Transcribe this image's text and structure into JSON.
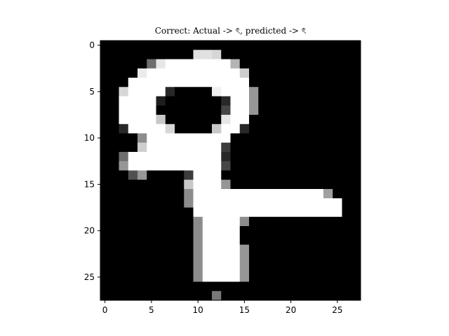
{
  "chart_data": {
    "type": "heatmap",
    "title": "Correct: Actual -> ৎ, predicted -> ৎ",
    "xlabel": "",
    "ylabel": "",
    "colormap": "gray",
    "value_range": [
      0,
      255
    ],
    "xlim": [
      -0.5,
      27.5
    ],
    "ylim": [
      27.5,
      -0.5
    ],
    "x_ticks": [
      0,
      5,
      10,
      15,
      20,
      25
    ],
    "y_ticks": [
      0,
      5,
      10,
      15,
      20,
      25
    ],
    "x_tick_labels": [
      "0",
      "5",
      "10",
      "15",
      "20",
      "25"
    ],
    "y_tick_labels": [
      "0",
      "5",
      "10",
      "15",
      "20",
      "25"
    ],
    "rows": 28,
    "cols": 28,
    "pixels": [
      [
        0,
        0,
        0,
        0,
        0,
        0,
        0,
        0,
        0,
        0,
        0,
        0,
        0,
        0,
        0,
        0,
        0,
        0,
        0,
        0,
        0,
        0,
        0,
        0,
        0,
        0,
        0,
        0
      ],
      [
        0,
        0,
        0,
        0,
        0,
        0,
        0,
        0,
        0,
        0,
        225,
        225,
        215,
        0,
        0,
        0,
        0,
        0,
        0,
        0,
        0,
        0,
        0,
        0,
        0,
        0,
        0,
        0
      ],
      [
        0,
        0,
        0,
        0,
        0,
        110,
        230,
        255,
        255,
        255,
        255,
        255,
        255,
        255,
        180,
        0,
        0,
        0,
        0,
        0,
        0,
        0,
        0,
        0,
        0,
        0,
        0,
        0
      ],
      [
        0,
        0,
        0,
        0,
        235,
        255,
        255,
        255,
        255,
        255,
        255,
        255,
        255,
        255,
        255,
        205,
        0,
        0,
        0,
        0,
        0,
        0,
        0,
        0,
        0,
        0,
        0,
        0
      ],
      [
        0,
        0,
        0,
        255,
        255,
        255,
        255,
        255,
        255,
        255,
        255,
        255,
        255,
        255,
        255,
        255,
        0,
        0,
        0,
        0,
        0,
        0,
        0,
        0,
        0,
        0,
        0,
        0
      ],
      [
        0,
        0,
        215,
        255,
        255,
        255,
        255,
        40,
        0,
        0,
        0,
        0,
        240,
        255,
        255,
        255,
        150,
        0,
        0,
        0,
        0,
        0,
        0,
        0,
        0,
        0,
        0,
        0
      ],
      [
        0,
        0,
        255,
        255,
        255,
        255,
        30,
        0,
        0,
        0,
        0,
        0,
        0,
        40,
        255,
        255,
        150,
        0,
        0,
        0,
        0,
        0,
        0,
        0,
        0,
        0,
        0,
        0
      ],
      [
        0,
        0,
        255,
        255,
        255,
        255,
        0,
        0,
        0,
        0,
        0,
        0,
        0,
        70,
        255,
        255,
        150,
        0,
        0,
        0,
        0,
        0,
        0,
        0,
        0,
        0,
        0,
        0
      ],
      [
        0,
        0,
        255,
        255,
        255,
        255,
        200,
        0,
        0,
        0,
        0,
        0,
        0,
        230,
        255,
        255,
        0,
        0,
        0,
        0,
        0,
        0,
        0,
        0,
        0,
        0,
        0,
        0
      ],
      [
        0,
        0,
        40,
        255,
        255,
        255,
        255,
        215,
        0,
        0,
        0,
        0,
        200,
        255,
        255,
        40,
        0,
        0,
        0,
        0,
        0,
        0,
        0,
        0,
        0,
        0,
        0,
        0
      ],
      [
        0,
        0,
        0,
        0,
        140,
        255,
        255,
        255,
        255,
        255,
        255,
        255,
        255,
        255,
        0,
        0,
        0,
        0,
        0,
        0,
        0,
        0,
        0,
        0,
        0,
        0,
        0,
        0
      ],
      [
        0,
        0,
        0,
        0,
        205,
        255,
        255,
        255,
        255,
        255,
        255,
        255,
        255,
        60,
        0,
        0,
        0,
        0,
        0,
        0,
        0,
        0,
        0,
        0,
        0,
        0,
        0,
        0
      ],
      [
        0,
        0,
        110,
        255,
        255,
        255,
        255,
        255,
        255,
        255,
        255,
        255,
        255,
        40,
        0,
        0,
        0,
        0,
        0,
        0,
        0,
        0,
        0,
        0,
        0,
        0,
        0,
        0
      ],
      [
        0,
        0,
        150,
        255,
        255,
        255,
        255,
        255,
        255,
        255,
        255,
        255,
        255,
        70,
        0,
        0,
        0,
        0,
        0,
        0,
        0,
        0,
        0,
        0,
        0,
        0,
        0,
        0
      ],
      [
        0,
        0,
        0,
        80,
        150,
        0,
        0,
        0,
        0,
        60,
        255,
        255,
        255,
        0,
        0,
        0,
        0,
        0,
        0,
        0,
        0,
        0,
        0,
        0,
        0,
        0,
        0,
        0
      ],
      [
        0,
        0,
        0,
        0,
        0,
        0,
        0,
        0,
        0,
        200,
        255,
        255,
        255,
        150,
        0,
        0,
        0,
        0,
        0,
        0,
        0,
        0,
        0,
        0,
        0,
        0,
        0,
        0
      ],
      [
        0,
        0,
        0,
        0,
        0,
        0,
        0,
        0,
        0,
        140,
        255,
        255,
        255,
        255,
        255,
        255,
        255,
        255,
        255,
        255,
        255,
        255,
        255,
        255,
        160,
        0,
        0,
        0
      ],
      [
        0,
        0,
        0,
        0,
        0,
        0,
        0,
        0,
        0,
        140,
        255,
        255,
        255,
        255,
        255,
        255,
        255,
        255,
        255,
        255,
        255,
        255,
        255,
        255,
        255,
        255,
        0,
        0
      ],
      [
        0,
        0,
        0,
        0,
        0,
        0,
        0,
        0,
        0,
        0,
        255,
        255,
        255,
        255,
        255,
        255,
        255,
        255,
        255,
        255,
        255,
        255,
        255,
        255,
        255,
        255,
        0,
        0
      ],
      [
        0,
        0,
        0,
        0,
        0,
        0,
        0,
        0,
        0,
        0,
        140,
        255,
        255,
        255,
        255,
        140,
        0,
        0,
        0,
        0,
        0,
        0,
        0,
        0,
        0,
        0,
        0,
        0
      ],
      [
        0,
        0,
        0,
        0,
        0,
        0,
        0,
        0,
        0,
        0,
        140,
        255,
        255,
        255,
        255,
        0,
        0,
        0,
        0,
        0,
        0,
        0,
        0,
        0,
        0,
        0,
        0,
        0
      ],
      [
        0,
        0,
        0,
        0,
        0,
        0,
        0,
        0,
        0,
        0,
        140,
        255,
        255,
        255,
        255,
        0,
        0,
        0,
        0,
        0,
        0,
        0,
        0,
        0,
        0,
        0,
        0,
        0
      ],
      [
        0,
        0,
        0,
        0,
        0,
        0,
        0,
        0,
        0,
        0,
        140,
        255,
        255,
        255,
        255,
        150,
        0,
        0,
        0,
        0,
        0,
        0,
        0,
        0,
        0,
        0,
        0,
        0
      ],
      [
        0,
        0,
        0,
        0,
        0,
        0,
        0,
        0,
        0,
        0,
        140,
        255,
        255,
        255,
        255,
        150,
        0,
        0,
        0,
        0,
        0,
        0,
        0,
        0,
        0,
        0,
        0,
        0
      ],
      [
        0,
        0,
        0,
        0,
        0,
        0,
        0,
        0,
        0,
        0,
        140,
        255,
        255,
        255,
        255,
        150,
        0,
        0,
        0,
        0,
        0,
        0,
        0,
        0,
        0,
        0,
        0,
        0
      ],
      [
        0,
        0,
        0,
        0,
        0,
        0,
        0,
        0,
        0,
        0,
        140,
        255,
        255,
        255,
        255,
        150,
        0,
        0,
        0,
        0,
        0,
        0,
        0,
        0,
        0,
        0,
        0,
        0
      ],
      [
        0,
        0,
        0,
        0,
        0,
        0,
        0,
        0,
        0,
        0,
        0,
        0,
        0,
        0,
        0,
        0,
        0,
        0,
        0,
        0,
        0,
        0,
        0,
        0,
        0,
        0,
        0,
        0
      ],
      [
        0,
        0,
        0,
        0,
        0,
        0,
        0,
        0,
        0,
        0,
        0,
        0,
        120,
        0,
        0,
        0,
        0,
        0,
        0,
        0,
        0,
        0,
        0,
        0,
        0,
        0,
        0,
        0
      ]
    ]
  }
}
